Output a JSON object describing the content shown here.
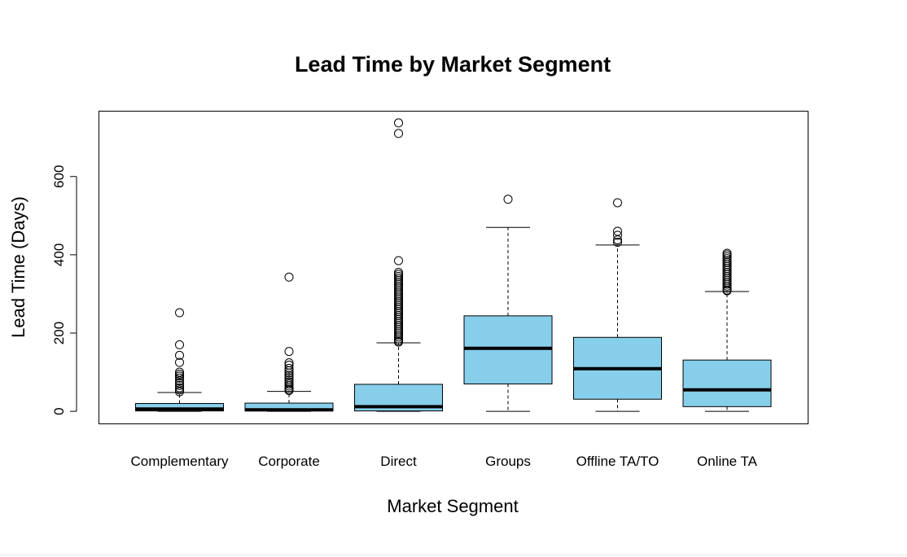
{
  "chart_data": {
    "type": "boxplot",
    "title": "Lead Time by Market Segment",
    "xlabel": "Market Segment",
    "ylabel": "Lead Time (Days)",
    "ylim": [
      -32,
      767
    ],
    "yticks": [
      0,
      200,
      400,
      600
    ],
    "grid": false,
    "legend": "none",
    "box_color": "#87CEEB",
    "categories": [
      "Complementary",
      "Corporate",
      "Direct",
      "Groups",
      "Offline TA/TO",
      "Online TA"
    ],
    "boxes": [
      {
        "category": "Complementary",
        "whisker_low": 0,
        "q1": 1,
        "median": 6,
        "q3": 20,
        "whisker_high": 48,
        "outliers": [
          252,
          170,
          143,
          125,
          100,
          95,
          90,
          85,
          78,
          72,
          66,
          60,
          55,
          50
        ]
      },
      {
        "category": "Corporate",
        "whisker_low": 0,
        "q1": 1,
        "median": 4,
        "q3": 21,
        "whisker_high": 51,
        "outliers": [
          343,
          153,
          124,
          118,
          110,
          104,
          98,
          92,
          86,
          80,
          75,
          70,
          65,
          60,
          56,
          53
        ]
      },
      {
        "category": "Direct",
        "whisker_low": 0,
        "q1": 1,
        "median": 12,
        "q3": 69,
        "whisker_high": 175,
        "outliers": [
          737,
          710,
          385,
          355,
          350,
          345,
          340,
          335,
          330,
          325,
          320,
          315,
          310,
          305,
          300,
          295,
          290,
          285,
          280,
          275,
          270,
          265,
          260,
          255,
          250,
          245,
          240,
          235,
          230,
          225,
          220,
          215,
          210,
          205,
          200,
          195,
          190,
          185,
          180,
          177
        ]
      },
      {
        "category": "Groups",
        "whisker_low": 0,
        "q1": 70,
        "median": 161,
        "q3": 244,
        "whisker_high": 470,
        "outliers": [
          542
        ]
      },
      {
        "category": "Offline TA/TO",
        "whisker_low": 0,
        "q1": 31,
        "median": 109,
        "q3": 189,
        "whisker_high": 425,
        "outliers": [
          533,
          460,
          450,
          438,
          432
        ]
      },
      {
        "category": "Online TA",
        "whisker_low": 0,
        "q1": 12,
        "median": 55,
        "q3": 131,
        "whisker_high": 306,
        "outliers": [
          404,
          400,
          395,
          390,
          385,
          380,
          375,
          370,
          365,
          360,
          355,
          350,
          345,
          340,
          335,
          330,
          325,
          320,
          315,
          310,
          308
        ]
      }
    ]
  }
}
